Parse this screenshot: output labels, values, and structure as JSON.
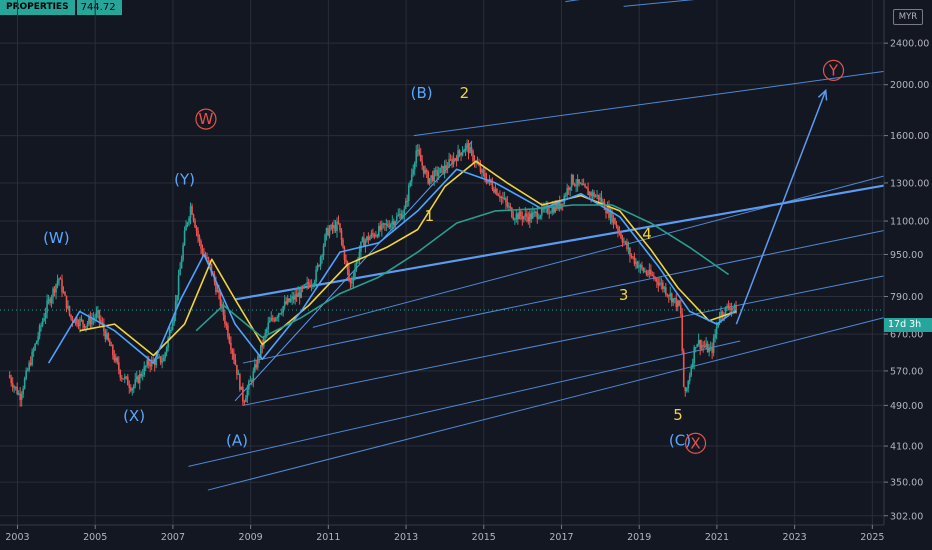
{
  "chart_data": {
    "type": "candlestick",
    "currency": "MYR",
    "y_scale": "log",
    "ylim": [
      290,
      2900
    ],
    "xlim": [
      2002.55,
      2025.3
    ],
    "x_ticks": [
      "2003",
      "2005",
      "2007",
      "2009",
      "2011",
      "2013",
      "2015",
      "2017",
      "2019",
      "2021",
      "2023",
      "2025"
    ],
    "y_ticks": [
      "302.00",
      "350.00",
      "410.00",
      "490.00",
      "570.00",
      "670.00",
      "790.00",
      "950.00",
      "1100.00",
      "1300.00",
      "1600.00",
      "2000.00",
      "2400.00"
    ],
    "y_tick_values": [
      302,
      350,
      410,
      490,
      570,
      670,
      790,
      950,
      1100,
      1300,
      1600,
      2000,
      2400
    ],
    "last_price": "744.72",
    "last_price_value": 744.72,
    "symbol_label": "PROPERTIES",
    "countdown": "17d 3h",
    "price_path": [
      [
        2002.8,
        560
      ],
      [
        2003.1,
        510
      ],
      [
        2003.5,
        640
      ],
      [
        2003.8,
        760
      ],
      [
        2004.1,
        860
      ],
      [
        2004.4,
        720
      ],
      [
        2004.8,
        700
      ],
      [
        2005.1,
        730
      ],
      [
        2005.4,
        640
      ],
      [
        2005.7,
        560
      ],
      [
        2006.0,
        530
      ],
      [
        2006.4,
        590
      ],
      [
        2006.8,
        600
      ],
      [
        2007.1,
        760
      ],
      [
        2007.35,
        1050
      ],
      [
        2007.5,
        1180
      ],
      [
        2007.75,
        980
      ],
      [
        2008.0,
        900
      ],
      [
        2008.3,
        750
      ],
      [
        2008.6,
        610
      ],
      [
        2008.85,
        500
      ],
      [
        2009.1,
        560
      ],
      [
        2009.5,
        700
      ],
      [
        2009.9,
        760
      ],
      [
        2010.3,
        800
      ],
      [
        2010.7,
        860
      ],
      [
        2011.0,
        1050
      ],
      [
        2011.3,
        1080
      ],
      [
        2011.6,
        830
      ],
      [
        2011.9,
        1000
      ],
      [
        2012.3,
        1050
      ],
      [
        2012.7,
        1100
      ],
      [
        2013.0,
        1150
      ],
      [
        2013.3,
        1500
      ],
      [
        2013.6,
        1320
      ],
      [
        2014.0,
        1380
      ],
      [
        2014.4,
        1480
      ],
      [
        2014.6,
        1530
      ],
      [
        2015.0,
        1350
      ],
      [
        2015.4,
        1250
      ],
      [
        2015.8,
        1130
      ],
      [
        2016.2,
        1120
      ],
      [
        2016.6,
        1150
      ],
      [
        2017.0,
        1180
      ],
      [
        2017.3,
        1320
      ],
      [
        2017.7,
        1250
      ],
      [
        2018.0,
        1220
      ],
      [
        2018.4,
        1100
      ],
      [
        2018.8,
        950
      ],
      [
        2019.1,
        890
      ],
      [
        2019.5,
        850
      ],
      [
        2019.8,
        800
      ],
      [
        2020.1,
        750
      ],
      [
        2020.2,
        500
      ],
      [
        2020.5,
        650
      ],
      [
        2020.9,
        620
      ],
      [
        2021.1,
        730
      ],
      [
        2021.4,
        760
      ],
      [
        2021.5,
        745
      ]
    ],
    "moving_averages": [
      {
        "color": "#f2d43a",
        "values": [
          [
            2004.6,
            680
          ],
          [
            2005.5,
            700
          ],
          [
            2006.5,
            610
          ],
          [
            2007.3,
            700
          ],
          [
            2008.0,
            930
          ],
          [
            2008.6,
            780
          ],
          [
            2009.3,
            640
          ],
          [
            2010.5,
            760
          ],
          [
            2011.5,
            910
          ],
          [
            2012.5,
            980
          ],
          [
            2013.3,
            1060
          ],
          [
            2014.0,
            1280
          ],
          [
            2014.8,
            1430
          ],
          [
            2015.6,
            1300
          ],
          [
            2016.5,
            1180
          ],
          [
            2017.5,
            1230
          ],
          [
            2018.5,
            1150
          ],
          [
            2019.3,
            970
          ],
          [
            2020.0,
            820
          ],
          [
            2020.8,
            710
          ],
          [
            2021.5,
            740
          ]
        ]
      },
      {
        "color": "#4da3ff",
        "values": [
          [
            2003.8,
            590
          ],
          [
            2004.6,
            740
          ],
          [
            2005.5,
            680
          ],
          [
            2006.5,
            590
          ],
          [
            2007.2,
            780
          ],
          [
            2007.8,
            950
          ],
          [
            2008.6,
            700
          ],
          [
            2009.3,
            600
          ],
          [
            2010.3,
            740
          ],
          [
            2011.3,
            960
          ],
          [
            2012.3,
            1000
          ],
          [
            2013.3,
            1150
          ],
          [
            2014.3,
            1380
          ],
          [
            2015.3,
            1300
          ],
          [
            2016.5,
            1160
          ],
          [
            2017.5,
            1240
          ],
          [
            2018.5,
            1120
          ],
          [
            2019.5,
            900
          ],
          [
            2020.3,
            740
          ],
          [
            2021.0,
            700
          ],
          [
            2021.5,
            745
          ]
        ]
      },
      {
        "color": "#2a9d8f",
        "values": [
          [
            2007.6,
            680
          ],
          [
            2008.3,
            760
          ],
          [
            2009.3,
            660
          ],
          [
            2010.3,
            720
          ],
          [
            2011.3,
            800
          ],
          [
            2012.3,
            860
          ],
          [
            2013.3,
            960
          ],
          [
            2014.3,
            1090
          ],
          [
            2015.3,
            1150
          ],
          [
            2016.3,
            1160
          ],
          [
            2017.3,
            1180
          ],
          [
            2018.3,
            1180
          ],
          [
            2019.3,
            1090
          ],
          [
            2020.3,
            980
          ],
          [
            2021.3,
            870
          ]
        ]
      }
    ],
    "channel_lines": [
      {
        "kind": "parallel",
        "points": [
          [
            2007.4,
            375
          ],
          [
            2021.6,
            650
          ]
        ]
      },
      {
        "kind": "parallel",
        "points": [
          [
            2007.9,
            338
          ],
          [
            2025.3,
            720
          ]
        ]
      },
      {
        "kind": "parallel",
        "points": [
          [
            2008.8,
            490
          ],
          [
            2025.3,
            865
          ]
        ]
      },
      {
        "kind": "parallel",
        "points": [
          [
            2008.8,
            590
          ],
          [
            2025.3,
            1055
          ]
        ]
      },
      {
        "kind": "parallel",
        "points": [
          [
            2013.2,
            1600
          ],
          [
            2025.3,
            2120
          ]
        ]
      },
      {
        "kind": "parallel",
        "points": [
          [
            2017.1,
            2880
          ],
          [
            2025.3,
            3520
          ]
        ]
      },
      {
        "kind": "parallel",
        "points": [
          [
            2018.6,
            2820
          ],
          [
            2025.3,
            3150
          ]
        ]
      },
      {
        "kind": "parallel",
        "points": [
          [
            2010.6,
            690
          ],
          [
            2025.3,
            1340
          ]
        ]
      },
      {
        "kind": "midline",
        "points": [
          [
            2008.6,
            780
          ],
          [
            2025.3,
            1285
          ]
        ]
      },
      {
        "kind": "trend",
        "points": [
          [
            2008.6,
            500
          ],
          [
            2014.7,
            1560
          ]
        ]
      }
    ],
    "projection_arrow": {
      "from": [
        2021.5,
        700
      ],
      "to": [
        2023.8,
        1950
      ]
    },
    "wave_labels": [
      {
        "text": "(W)",
        "x": 2004.0,
        "y": 1020,
        "color": "#5aa7ff"
      },
      {
        "text": "(X)",
        "x": 2006.0,
        "y": 468,
        "color": "#5aa7ff"
      },
      {
        "text": "(Y)",
        "x": 2007.3,
        "y": 1320,
        "color": "#5aa7ff"
      },
      {
        "text": "W",
        "x": 2007.85,
        "y": 1720,
        "color": "#e5534b",
        "circled": true
      },
      {
        "text": "(A)",
        "x": 2008.65,
        "y": 420,
        "color": "#5aa7ff"
      },
      {
        "text": "(B)",
        "x": 2013.4,
        "y": 1930,
        "color": "#5aa7ff"
      },
      {
        "text": "2",
        "x": 2014.5,
        "y": 1930,
        "color": "#f2d43a"
      },
      {
        "text": "1",
        "x": 2013.6,
        "y": 1125,
        "color": "#f2d43a"
      },
      {
        "text": "4",
        "x": 2019.2,
        "y": 1040,
        "color": "#f2d43a"
      },
      {
        "text": "3",
        "x": 2018.6,
        "y": 795,
        "color": "#f2d43a"
      },
      {
        "text": "5",
        "x": 2020.0,
        "y": 470,
        "color": "#f2d43a"
      },
      {
        "text": "(C)",
        "x": 2020.05,
        "y": 420,
        "color": "#5aa7ff"
      },
      {
        "text": "X",
        "x": 2020.45,
        "y": 415,
        "color": "#e5534b",
        "circled": true
      },
      {
        "text": "Y",
        "x": 2024.0,
        "y": 2130,
        "color": "#e5534b",
        "circled": true
      }
    ]
  },
  "colors": {
    "up": "#26a69a",
    "down": "#ef5350",
    "channel": "#5b9bf0",
    "grid": "#2a2e39",
    "background": "#131722"
  }
}
